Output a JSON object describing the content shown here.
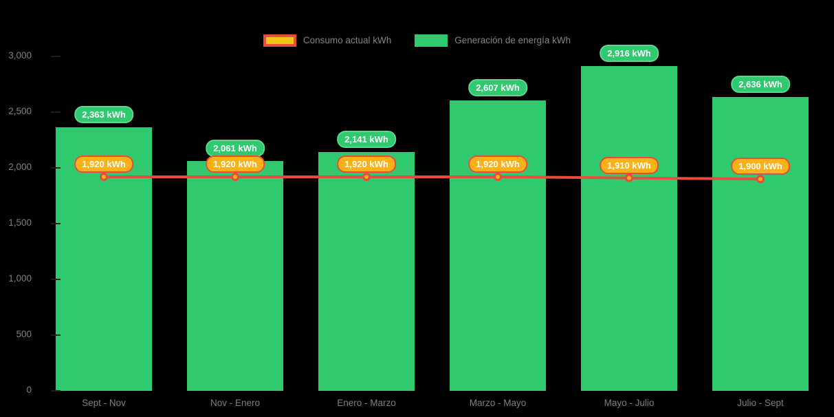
{
  "legend": {
    "consumption_label": "Consumo actual kWh",
    "generation_label": "Generación de energía kWh"
  },
  "colors": {
    "bar_green": "#2FC96E",
    "pill_green_border": "#5CD794",
    "line_red": "#E74C3C",
    "marker_amber": "#FBB117",
    "legend_yellow_fill": "#F0C419",
    "axis_text_gray": "#7F7F7F",
    "background": "#000000"
  },
  "chart_data": {
    "type": "bar",
    "subtype": "bar-with-line-overlay",
    "title": "",
    "xlabel": "",
    "ylabel": "",
    "categories": [
      "Sept - Nov",
      "Nov - Enero",
      "Enero - Marzo",
      "Marzo - Mayo",
      "Mayo - Julio",
      "Julio - Sept"
    ],
    "series": [
      {
        "name": "Generación de energía kWh",
        "type": "bar",
        "color": "#2FC96E",
        "values": [
          2363,
          2061,
          2141,
          2607,
          2916,
          2636
        ],
        "data_labels": [
          "2,363 kWh",
          "2,061 kWh",
          "2,141 kWh",
          "2,607 kWh",
          "2,916 kWh",
          "2,636 kWh"
        ]
      },
      {
        "name": "Consumo actual kWh",
        "type": "line",
        "color": "#E74C3C",
        "marker_color": "#FBB117",
        "values": [
          1920,
          1920,
          1920,
          1920,
          1910,
          1900
        ],
        "data_labels": [
          "1,920 kWh",
          "1,920 kWh",
          "1,920 kWh",
          "1,920 kWh",
          "1,910 kWh",
          "1,900 kWh"
        ]
      }
    ],
    "ylim": [
      0,
      3000
    ],
    "yticks": [
      0,
      500,
      1000,
      1500,
      2000,
      2500,
      3000
    ],
    "ytick_labels": [
      "0",
      "500",
      "1,000",
      "1,500",
      "2,000",
      "2,500",
      "3,000"
    ],
    "grid": false,
    "legend_position": "top-center"
  }
}
